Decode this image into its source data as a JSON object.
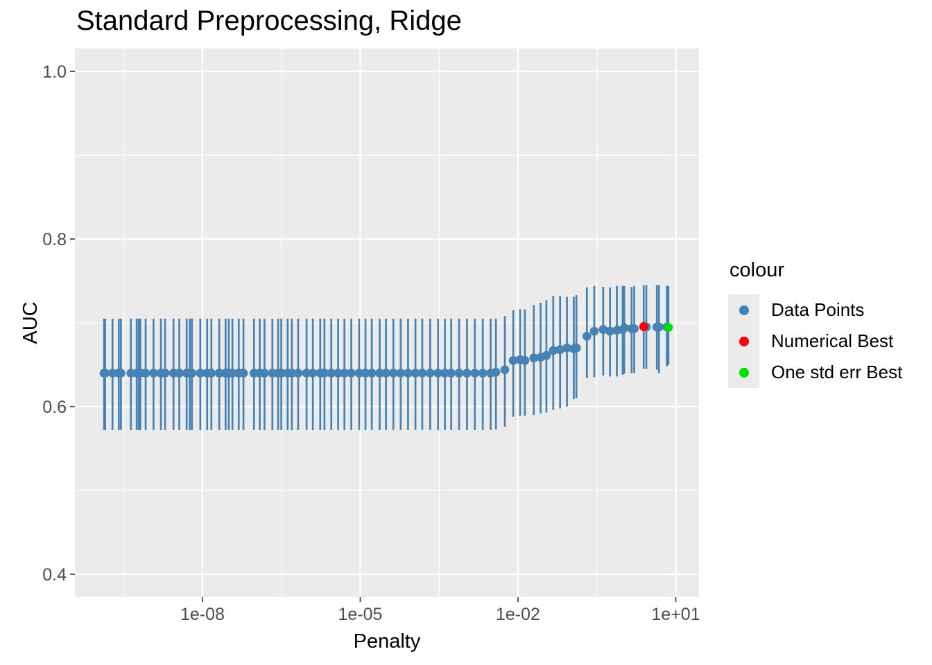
{
  "colors": {
    "panel_background": "#EBEBEB",
    "gridline": "#FFFFFF",
    "tick_mark": "#333333",
    "tick_label": "#4D4D4D",
    "text": "#000000",
    "data_points": "#4682B4",
    "numerical_best": "#FF0000",
    "one_std_err_best": "#00DE00",
    "error_bar": "#4682B4"
  },
  "chart_data": {
    "type": "scatter",
    "subtype": "pointrange-errorbar",
    "title": "Standard Preprocessing, Ridge",
    "xlabel": "Penalty",
    "ylabel": "AUC",
    "legend_title": "colour",
    "x_scale": "log10",
    "x_domain_log10": [
      -10.425,
      1.4415
    ],
    "y_domain": [
      0.3727,
      1.0273
    ],
    "grid": true,
    "legend_position": "right",
    "x_ticks": [
      {
        "log10": -8,
        "label": "1e-08"
      },
      {
        "log10": -5,
        "label": "1e-05"
      },
      {
        "log10": -2,
        "label": "1e-02"
      },
      {
        "log10": 1,
        "label": "1e+01"
      }
    ],
    "x_minor_ticks_log10": [
      -9.5,
      -6.5,
      -3.5,
      -0.5
    ],
    "y_ticks": [
      {
        "value": 1.0,
        "label": "1.0"
      },
      {
        "value": 0.8,
        "label": "0.8"
      },
      {
        "value": 0.6,
        "label": "0.6"
      },
      {
        "value": 0.4,
        "label": "0.4"
      }
    ],
    "y_minor_ticks": [
      0.9,
      0.7,
      0.5
    ],
    "point_format": [
      "log10_penalty",
      "auc_mean",
      "auc_lower",
      "auc_upper"
    ],
    "series": [
      {
        "name": "Data Points",
        "color": "#4682B4",
        "points": [
          [
            -9.87,
            0.64,
            0.572,
            0.705
          ],
          [
            -9.85,
            0.64,
            0.572,
            0.705
          ],
          [
            -9.71,
            0.64,
            0.572,
            0.705
          ],
          [
            -9.59,
            0.64,
            0.572,
            0.705
          ],
          [
            -9.55,
            0.64,
            0.572,
            0.705
          ],
          [
            -9.36,
            0.64,
            0.572,
            0.705
          ],
          [
            -9.25,
            0.64,
            0.572,
            0.705
          ],
          [
            -9.21,
            0.64,
            0.572,
            0.705
          ],
          [
            -9.18,
            0.64,
            0.572,
            0.705
          ],
          [
            -9.08,
            0.64,
            0.572,
            0.705
          ],
          [
            -8.93,
            0.64,
            0.572,
            0.705
          ],
          [
            -8.79,
            0.64,
            0.572,
            0.705
          ],
          [
            -8.71,
            0.64,
            0.572,
            0.705
          ],
          [
            -8.55,
            0.64,
            0.572,
            0.705
          ],
          [
            -8.44,
            0.64,
            0.572,
            0.705
          ],
          [
            -8.3,
            0.64,
            0.572,
            0.705
          ],
          [
            -8.24,
            0.64,
            0.572,
            0.705
          ],
          [
            -8.2,
            0.64,
            0.572,
            0.705
          ],
          [
            -8.04,
            0.64,
            0.572,
            0.705
          ],
          [
            -7.91,
            0.64,
            0.572,
            0.705
          ],
          [
            -7.83,
            0.64,
            0.572,
            0.705
          ],
          [
            -7.68,
            0.64,
            0.572,
            0.705
          ],
          [
            -7.56,
            0.64,
            0.572,
            0.705
          ],
          [
            -7.5,
            0.64,
            0.572,
            0.705
          ],
          [
            -7.43,
            0.64,
            0.572,
            0.705
          ],
          [
            -7.31,
            0.64,
            0.572,
            0.705
          ],
          [
            -7.22,
            0.64,
            0.572,
            0.705
          ],
          [
            -7.02,
            0.64,
            0.572,
            0.705
          ],
          [
            -6.91,
            0.64,
            0.572,
            0.705
          ],
          [
            -6.82,
            0.64,
            0.572,
            0.705
          ],
          [
            -6.67,
            0.64,
            0.572,
            0.705
          ],
          [
            -6.56,
            0.64,
            0.572,
            0.705
          ],
          [
            -6.5,
            0.64,
            0.572,
            0.705
          ],
          [
            -6.38,
            0.64,
            0.572,
            0.705
          ],
          [
            -6.3,
            0.64,
            0.572,
            0.705
          ],
          [
            -6.18,
            0.64,
            0.572,
            0.705
          ],
          [
            -6.02,
            0.64,
            0.572,
            0.705
          ],
          [
            -5.9,
            0.64,
            0.572,
            0.705
          ],
          [
            -5.76,
            0.64,
            0.572,
            0.705
          ],
          [
            -5.68,
            0.64,
            0.572,
            0.705
          ],
          [
            -5.55,
            0.64,
            0.572,
            0.705
          ],
          [
            -5.42,
            0.64,
            0.572,
            0.705
          ],
          [
            -5.3,
            0.64,
            0.572,
            0.705
          ],
          [
            -5.17,
            0.64,
            0.572,
            0.705
          ],
          [
            -5.02,
            0.64,
            0.572,
            0.705
          ],
          [
            -4.9,
            0.64,
            0.572,
            0.705
          ],
          [
            -4.78,
            0.64,
            0.572,
            0.705
          ],
          [
            -4.63,
            0.64,
            0.572,
            0.705
          ],
          [
            -4.51,
            0.64,
            0.572,
            0.705
          ],
          [
            -4.37,
            0.64,
            0.572,
            0.705
          ],
          [
            -4.23,
            0.64,
            0.572,
            0.705
          ],
          [
            -4.09,
            0.64,
            0.572,
            0.705
          ],
          [
            -3.95,
            0.64,
            0.572,
            0.705
          ],
          [
            -3.82,
            0.64,
            0.572,
            0.705
          ],
          [
            -3.67,
            0.64,
            0.572,
            0.705
          ],
          [
            -3.52,
            0.64,
            0.572,
            0.705
          ],
          [
            -3.39,
            0.64,
            0.572,
            0.705
          ],
          [
            -3.27,
            0.64,
            0.572,
            0.705
          ],
          [
            -3.12,
            0.64,
            0.572,
            0.705
          ],
          [
            -2.97,
            0.64,
            0.572,
            0.705
          ],
          [
            -2.82,
            0.64,
            0.572,
            0.705
          ],
          [
            -2.67,
            0.64,
            0.572,
            0.705
          ],
          [
            -2.52,
            0.64,
            0.572,
            0.705
          ],
          [
            -2.42,
            0.641,
            0.573,
            0.705
          ],
          [
            -2.25,
            0.644,
            0.576,
            0.708
          ],
          [
            -2.09,
            0.655,
            0.588,
            0.715
          ],
          [
            -1.96,
            0.656,
            0.589,
            0.716
          ],
          [
            -1.87,
            0.655,
            0.589,
            0.716
          ],
          [
            -1.7,
            0.658,
            0.59,
            0.721
          ],
          [
            -1.57,
            0.659,
            0.592,
            0.724
          ],
          [
            -1.46,
            0.661,
            0.593,
            0.727
          ],
          [
            -1.33,
            0.667,
            0.596,
            0.732
          ],
          [
            -1.2,
            0.668,
            0.598,
            0.732
          ],
          [
            -1.07,
            0.67,
            0.6,
            0.731
          ],
          [
            -0.94,
            0.669,
            0.609,
            0.731
          ],
          [
            -0.89,
            0.67,
            0.61,
            0.733
          ],
          [
            -0.69,
            0.684,
            0.634,
            0.742
          ],
          [
            -0.55,
            0.69,
            0.635,
            0.744
          ],
          [
            -0.38,
            0.692,
            0.637,
            0.743
          ],
          [
            -0.25,
            0.69,
            0.636,
            0.742
          ],
          [
            -0.12,
            0.691,
            0.636,
            0.744
          ],
          [
            -0.01,
            0.692,
            0.638,
            0.744
          ],
          [
            0.02,
            0.694,
            0.639,
            0.744
          ],
          [
            0.16,
            0.693,
            0.64,
            0.743
          ],
          [
            0.21,
            0.693,
            0.64,
            0.744
          ],
          [
            0.44,
            0.695,
            0.645,
            0.745
          ],
          [
            0.64,
            0.695,
            0.644,
            0.745
          ],
          [
            0.68,
            0.695,
            0.64,
            0.745
          ],
          [
            0.83,
            0.695,
            0.648,
            0.744
          ]
        ]
      },
      {
        "name": "Numerical Best",
        "color": "#FF0000",
        "points": [
          [
            0.39,
            0.6955,
            0.645,
            0.745
          ]
        ]
      },
      {
        "name": "One std err Best",
        "color": "#00DE00",
        "points": [
          [
            0.86,
            0.6945,
            0.65,
            0.744
          ]
        ]
      }
    ]
  }
}
